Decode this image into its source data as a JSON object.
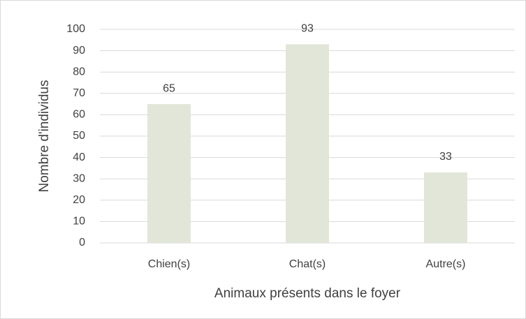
{
  "chart_data": {
    "type": "bar",
    "categories": [
      "Chien(s)",
      "Chat(s)",
      "Autre(s)"
    ],
    "values": [
      65,
      93,
      33
    ],
    "color": "#e2e6d9",
    "xlabel": "Animaux présents dans le foyer",
    "ylabel": "Nombre d'individus",
    "ylim": [
      0,
      100
    ],
    "yticks": [
      0,
      10,
      20,
      30,
      40,
      50,
      60,
      70,
      80,
      90,
      100
    ],
    "grid": true
  }
}
